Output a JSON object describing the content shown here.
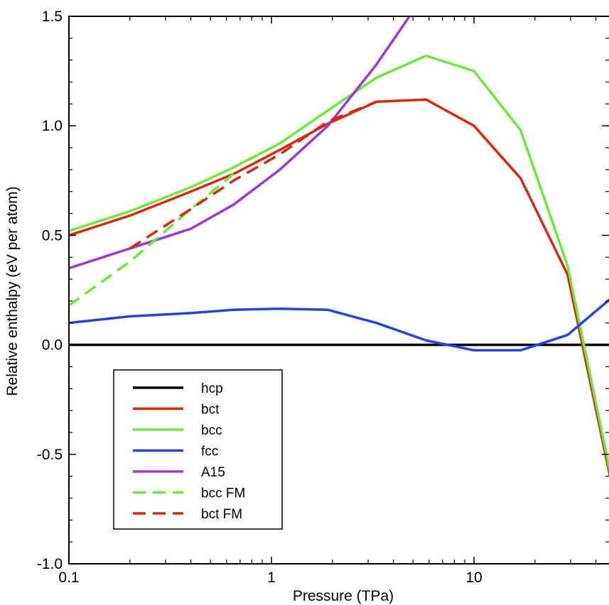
{
  "chart_data": {
    "type": "line",
    "title": "",
    "xlabel": "Pressure (TPa)",
    "ylabel": "Relative enthalpy (eV per atom)",
    "xscale": "log",
    "xlim": [
      0.1,
      50
    ],
    "ylim": [
      -1.0,
      1.5
    ],
    "x_ticks": [
      0.1,
      1,
      10
    ],
    "x_tick_labels": [
      "0.1",
      "1",
      "10"
    ],
    "y_ticks": [
      -1.0,
      -0.5,
      0.0,
      0.5,
      1.0,
      1.5
    ],
    "y_tick_labels": [
      "-1.0",
      "-0.5",
      "0.0",
      "0.5",
      "1.0",
      "1.5"
    ],
    "grid": false,
    "legend_position": "lower-left",
    "series": [
      {
        "name": "hcp",
        "color": "#000000",
        "dash": false,
        "points": [
          [
            0.1,
            0.0
          ],
          [
            50,
            0.0
          ]
        ]
      },
      {
        "name": "bct",
        "color": "#d8280e",
        "dash": false,
        "points": [
          [
            0.1,
            0.5
          ],
          [
            0.2,
            0.59
          ],
          [
            0.4,
            0.7
          ],
          [
            0.65,
            0.78
          ],
          [
            1.1,
            0.89
          ],
          [
            1.9,
            1.01
          ],
          [
            3.3,
            1.11
          ],
          [
            5.8,
            1.12
          ],
          [
            10,
            1.0
          ],
          [
            17,
            0.76
          ],
          [
            29,
            0.32
          ],
          [
            50,
            -0.72
          ]
        ]
      },
      {
        "name": "bcc",
        "color": "#6ee83a",
        "dash": false,
        "points": [
          [
            0.1,
            0.52
          ],
          [
            0.2,
            0.61
          ],
          [
            0.4,
            0.72
          ],
          [
            0.65,
            0.81
          ],
          [
            1.1,
            0.92
          ],
          [
            1.9,
            1.07
          ],
          [
            3.3,
            1.22
          ],
          [
            5.8,
            1.32
          ],
          [
            10,
            1.25
          ],
          [
            17,
            0.98
          ],
          [
            29,
            0.36
          ],
          [
            50,
            -0.7
          ]
        ]
      },
      {
        "name": "fcc",
        "color": "#2842e0",
        "dash": false,
        "points": [
          [
            0.1,
            0.1
          ],
          [
            0.2,
            0.13
          ],
          [
            0.4,
            0.145
          ],
          [
            0.65,
            0.16
          ],
          [
            1.1,
            0.165
          ],
          [
            1.9,
            0.16
          ],
          [
            3.3,
            0.1
          ],
          [
            5.8,
            0.02
          ],
          [
            10,
            -0.025
          ],
          [
            17,
            -0.025
          ],
          [
            29,
            0.045
          ],
          [
            50,
            0.23
          ]
        ]
      },
      {
        "name": "A15",
        "color": "#9a3ad2",
        "dash": false,
        "points": [
          [
            0.1,
            0.35
          ],
          [
            0.2,
            0.44
          ],
          [
            0.4,
            0.53
          ],
          [
            0.65,
            0.64
          ],
          [
            1.1,
            0.8
          ],
          [
            1.9,
            1.0
          ],
          [
            3.3,
            1.28
          ],
          [
            4.8,
            1.5
          ]
        ]
      },
      {
        "name": "bcc FM",
        "color": "#6ee83a",
        "dash": true,
        "points": [
          [
            0.1,
            0.18
          ],
          [
            0.2,
            0.38
          ],
          [
            0.4,
            0.62
          ],
          [
            0.65,
            0.78
          ]
        ]
      },
      {
        "name": "bct FM",
        "color": "#d8280e",
        "dash": true,
        "points": [
          [
            0.2,
            0.44
          ],
          [
            0.4,
            0.62
          ],
          [
            0.65,
            0.75
          ],
          [
            1.1,
            0.87
          ],
          [
            1.9,
            1.02
          ],
          [
            3.3,
            1.11
          ]
        ]
      }
    ]
  }
}
